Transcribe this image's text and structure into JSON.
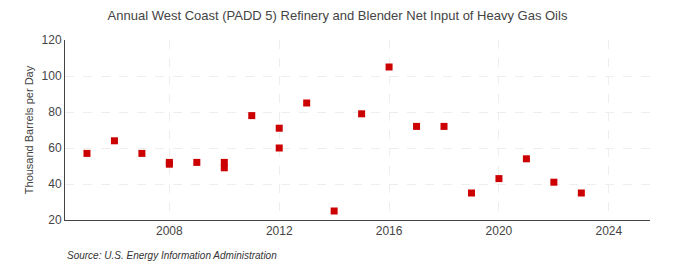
{
  "chart_data": {
    "type": "scatter",
    "title": "Annual West Coast (PADD 5) Refinery and Blender Net Input of Heavy Gas Oils",
    "y_label": "Thousand Barrels per Day",
    "annotations": [
      "Source: U.S. Energy Information Administration"
    ],
    "series": [
      {
        "x": [
          2005,
          2006,
          2007,
          2008,
          2009,
          2010,
          2011,
          2012,
          2013,
          2014,
          2015,
          2016,
          2017,
          2018,
          2019,
          2020,
          2021,
          2022,
          2023
        ],
        "values": [
          57,
          64,
          57,
          51,
          52,
          49,
          78,
          60,
          85,
          25,
          79,
          105,
          72,
          72,
          35,
          43,
          54,
          41,
          35
        ],
        "color": "#cc0000",
        "marker": "square"
      },
      {
        "x": [
          2008,
          2010,
          2012
        ],
        "values": [
          52,
          52,
          71
        ],
        "color": "#cc0000",
        "marker": "square"
      }
    ],
    "xlim": [
      2004.2,
      2025.5
    ],
    "xticks": [
      2008,
      2012,
      2016,
      2020,
      2024
    ],
    "ylim": [
      20,
      120
    ],
    "yticks": [
      20,
      40,
      60,
      80,
      100,
      120
    ],
    "grid": true
  }
}
